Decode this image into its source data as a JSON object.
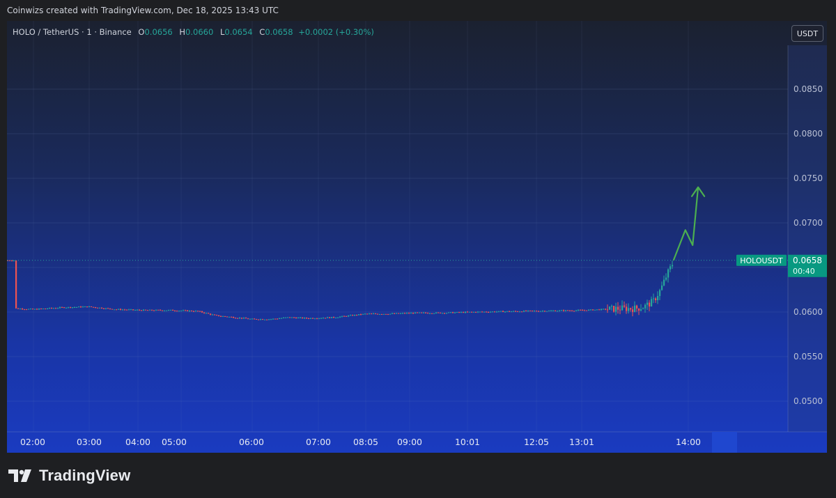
{
  "attribution": "Coinwizs created with TradingView.com, Dec 18, 2025 13:43 UTC",
  "legend": {
    "symbol": "HOLO / TetherUS · 1 · Binance",
    "open_key": "O",
    "open": "0.0656",
    "high_key": "H",
    "high": "0.0660",
    "low_key": "L",
    "low": "0.0654",
    "close_key": "C",
    "close": "0.0658",
    "change": "+0.0002",
    "change_pct": "(+0.30%)"
  },
  "currency_button": "USDT",
  "price_tag": {
    "symbol": "HOLOUSDT",
    "price": "0.0658",
    "countdown": "00:40"
  },
  "brand": "TradingView",
  "colors": {
    "up": "#26a69a",
    "down": "#ef5350",
    "arrow": "#4caf50",
    "tag": "#089981"
  },
  "chart_data": {
    "type": "candlestick",
    "y_ticks": [
      "0.0500",
      "0.0550",
      "0.0600",
      "0.0650",
      "0.0700",
      "0.0750",
      "0.0800",
      "0.0850"
    ],
    "x_ticks": [
      "02:00",
      "03:00",
      "04:00",
      "05:00",
      "06:00",
      "07:00",
      "08:05",
      "09:00",
      "10:01",
      "12:05",
      "13:01",
      "14:00"
    ],
    "last_price": 0.0658,
    "price_series": [
      [
        "01:40",
        0.0604
      ],
      [
        "02:00",
        0.0603
      ],
      [
        "02:30",
        0.0605
      ],
      [
        "03:00",
        0.0606
      ],
      [
        "03:30",
        0.0603
      ],
      [
        "04:00",
        0.0602
      ],
      [
        "04:30",
        0.0602
      ],
      [
        "05:00",
        0.0601
      ],
      [
        "05:20",
        0.0596
      ],
      [
        "05:40",
        0.0594
      ],
      [
        "06:00",
        0.0592
      ],
      [
        "06:20",
        0.0592
      ],
      [
        "06:40",
        0.0594
      ],
      [
        "07:00",
        0.0593
      ],
      [
        "07:30",
        0.0594
      ],
      [
        "08:05",
        0.0598
      ],
      [
        "08:30",
        0.0598
      ],
      [
        "09:00",
        0.0599
      ],
      [
        "09:30",
        0.0599
      ],
      [
        "10:01",
        0.06
      ],
      [
        "11:00",
        0.0601
      ],
      [
        "12:05",
        0.0602
      ],
      [
        "12:45",
        0.0604
      ],
      [
        "13:01",
        0.0604
      ],
      [
        "13:10",
        0.0606
      ],
      [
        "13:20",
        0.0612
      ],
      [
        "13:28",
        0.0625
      ],
      [
        "13:35",
        0.0642
      ],
      [
        "13:40",
        0.0652
      ],
      [
        "13:43",
        0.0658
      ]
    ],
    "projection_arrow": [
      [
        "13:43",
        0.0658
      ],
      [
        "13:56",
        0.0692
      ],
      [
        "14:04",
        0.0675
      ],
      [
        "14:10",
        0.074
      ]
    ],
    "currency": "USDT",
    "grid": true
  }
}
